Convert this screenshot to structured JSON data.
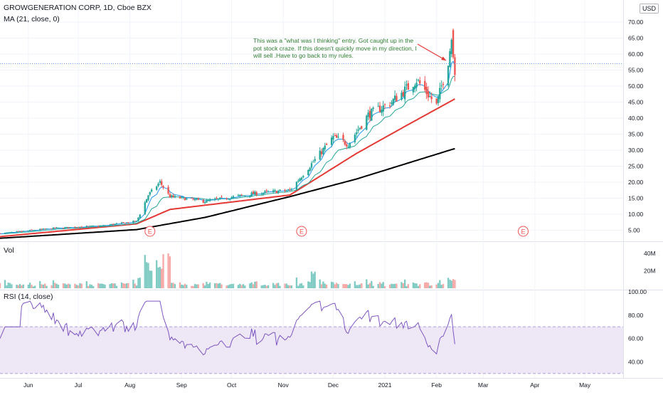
{
  "header": {
    "symbol_line": "GROWGENERATION CORP, 1D, Cboe BZX",
    "ma_label": "MA (21, close, 0)",
    "currency": "USD"
  },
  "panels": {
    "volume_label": "Vol",
    "rsi_label": "RSI (14, close)"
  },
  "annotation": {
    "text": "This was a \"what was I thinking\" entry.  Got caught up in the pot stock craze.  If this doesn't quickly move in my direction, I will sell .Have to go back to my rules."
  },
  "colors": {
    "up": "#26a69a",
    "down": "#ef5350",
    "ma_slow": "#000000",
    "ma_mid": "#e53935",
    "ma_fast": "#26a69a",
    "ma_faster": "#2196f3",
    "rsi_line": "#7e57c2",
    "rsi_band": "#ede7f6",
    "arrow": "#e53935",
    "earnings": "#ef5350"
  },
  "chart_data": [
    {
      "type": "candlestick",
      "y_axis_ticks": [
        "70.00",
        "65.00",
        "60.00",
        "55.00",
        "50.00",
        "45.00",
        "40.00",
        "35.00",
        "30.00",
        "25.00",
        "20.00",
        "15.00",
        "10.00",
        "5.00"
      ],
      "ylim": [
        2,
        72
      ],
      "x_axis_ticks": [
        "Jun",
        "Jul",
        "Aug",
        "Sep",
        "Oct",
        "Nov",
        "Dec",
        "2021",
        "Feb",
        "Mar",
        "Apr",
        "May"
      ],
      "earnings_markers": [
        "E",
        "E",
        "E"
      ],
      "current_price_line": 57,
      "close_anchors": [
        [
          "2020-05-15",
          4.0
        ],
        [
          "2020-06-15",
          5.6
        ],
        [
          "2020-07-15",
          6.4
        ],
        [
          "2020-08-05",
          7.8
        ],
        [
          "2020-08-12",
          16.0
        ],
        [
          "2020-08-19",
          20.0
        ],
        [
          "2020-08-25",
          15.5
        ],
        [
          "2020-09-15",
          14.0
        ],
        [
          "2020-10-15",
          16.5
        ],
        [
          "2020-11-05",
          17.5
        ],
        [
          "2020-11-20",
          27.0
        ],
        [
          "2020-12-01",
          34.0
        ],
        [
          "2020-12-10",
          32.0
        ],
        [
          "2020-12-22",
          41.0
        ],
        [
          "2021-01-05",
          45.0
        ],
        [
          "2021-01-20",
          52.0
        ],
        [
          "2021-02-01",
          44.0
        ],
        [
          "2021-02-08",
          58.0
        ],
        [
          "2021-02-10",
          65.0
        ],
        [
          "2021-02-12",
          57.0
        ]
      ],
      "ma_anchors": {
        "slow": [
          [
            "2020-05-15",
            2.5
          ],
          [
            "2020-08-05",
            5.2
          ],
          [
            "2020-09-15",
            9.0
          ],
          [
            "2020-11-05",
            15.5
          ],
          [
            "2020-12-15",
            21.0
          ],
          [
            "2021-01-15",
            26.0
          ],
          [
            "2021-02-12",
            30.5
          ]
        ],
        "mid": [
          [
            "2020-05-15",
            3.0
          ],
          [
            "2020-08-05",
            7.0
          ],
          [
            "2020-08-25",
            11.5
          ],
          [
            "2020-11-05",
            16.0
          ],
          [
            "2020-12-15",
            29.0
          ],
          [
            "2021-01-15",
            38.0
          ],
          [
            "2021-02-12",
            46.0
          ]
        ]
      }
    },
    {
      "type": "bar",
      "series_name": "Vol",
      "y_axis_ticks": [
        "40M",
        "20M"
      ],
      "ylim": [
        0,
        50
      ]
    },
    {
      "type": "line",
      "series_name": "RSI (14, close)",
      "y_axis_ticks": [
        "100.00",
        "80.00",
        "60.00",
        "40.00"
      ],
      "ylim": [
        28,
        100
      ],
      "band": [
        30,
        70
      ]
    }
  ]
}
